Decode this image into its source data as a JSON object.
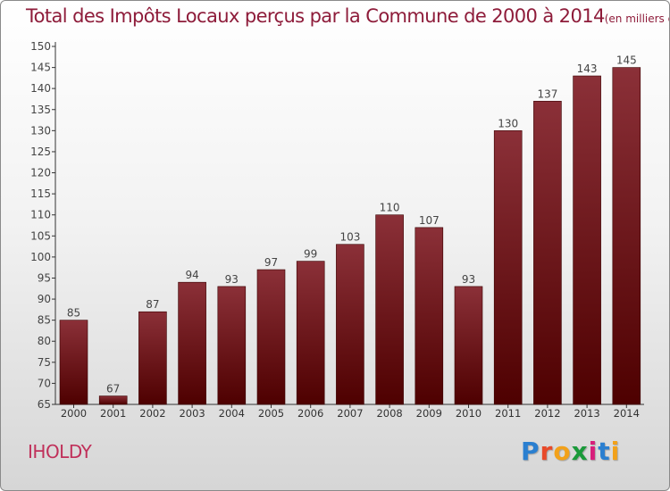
{
  "chart_data": {
    "type": "bar",
    "title": "Total des Impôts Locaux perçus par la Commune de 2000 à 2014",
    "unit_label": "(en milliers d'€)",
    "categories": [
      "2000",
      "2001",
      "2002",
      "2003",
      "2004",
      "2005",
      "2006",
      "2007",
      "2008",
      "2009",
      "2010",
      "2011",
      "2012",
      "2013",
      "2014"
    ],
    "values": [
      85,
      67,
      87,
      94,
      93,
      97,
      99,
      103,
      110,
      107,
      93,
      130,
      137,
      143,
      145
    ],
    "ylim": [
      65,
      150
    ],
    "yticks": [
      65,
      70,
      75,
      80,
      85,
      90,
      95,
      100,
      105,
      110,
      115,
      120,
      125,
      130,
      135,
      140,
      145,
      150
    ],
    "grid": false,
    "bar_color_top": "#8b3038",
    "bar_color_bottom": "#4e0000"
  },
  "commune": "IHOLDY",
  "logo": {
    "letters": [
      "P",
      "r",
      "o",
      "x",
      "i",
      "t",
      "i"
    ],
    "colors": [
      "#2a7fd0",
      "#e84a2a",
      "#f2a11a",
      "#1a9a3a",
      "#d81e7a",
      "#2a7fd0",
      "#f2a11a"
    ]
  }
}
